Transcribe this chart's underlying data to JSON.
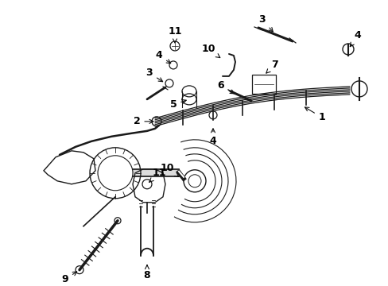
{
  "bg_color": "#ffffff",
  "fig_width": 4.89,
  "fig_height": 3.6,
  "dpi": 100,
  "line_color": "#1a1a1a",
  "arrow_color": "#111111",
  "label_fontsize": 9
}
